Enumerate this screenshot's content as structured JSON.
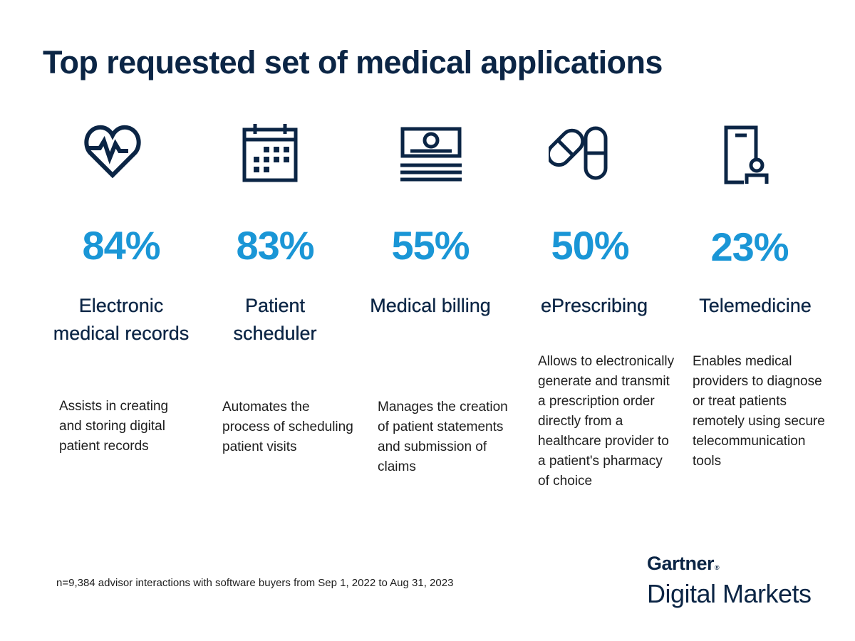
{
  "title": "Top requested set of medical applications",
  "items": [
    {
      "icon": "heart-pulse-icon",
      "percent": "84%",
      "name": "Electronic medical records",
      "description": "Assists in creating and storing digital patient records"
    },
    {
      "icon": "calendar-icon",
      "percent": "83%",
      "name": "Patient scheduler",
      "description": "Automates the process of scheduling patient visits"
    },
    {
      "icon": "billing-document-icon",
      "percent": "55%",
      "name": "Medical billing",
      "description": "Manages the creation of patient statements and submission of claims"
    },
    {
      "icon": "pills-icon",
      "percent": "50%",
      "name": "ePrescribing",
      "description": "Allows to electronically generate and transmit a prescription order directly from a healthcare provider to a patient's pharmacy of choice"
    },
    {
      "icon": "mobile-doctor-icon",
      "percent": "23%",
      "name": "Telemedicine",
      "description": "Enables medical providers to diagnose or treat patients remotely using secure telecommunication tools"
    }
  ],
  "footnote": "n=9,384 advisor interactions with software buyers from Sep 1, 2022 to Aug 31, 2023",
  "brand": {
    "line1": "Gartner",
    "registered": "®",
    "line2": "Digital Markets"
  },
  "colors": {
    "title": "#0b2545",
    "percent": "#1a96d6",
    "icon": "#0b2545",
    "text": "#1d1d1d"
  }
}
